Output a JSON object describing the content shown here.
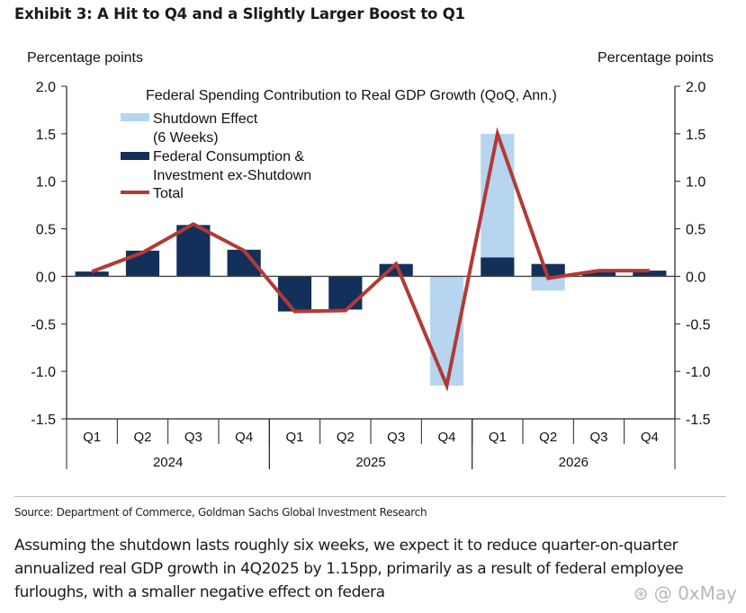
{
  "header": {
    "title": "Exhibit 3: A Hit to Q4 and a Slightly Larger Boost to Q1",
    "unit_left": "Percentage points",
    "unit_right": "Percentage points"
  },
  "chart_data": {
    "type": "bar",
    "title": "Federal Spending Contribution to Real GDP Growth (QoQ, Ann.)",
    "xlabel": "",
    "ylabel": "Percentage points",
    "ylim": [
      -1.5,
      2.0
    ],
    "yticks": [
      "2.0",
      "1.5",
      "1.0",
      "0.5",
      "0.0",
      "-0.5",
      "-1.0",
      "-1.5"
    ],
    "ytick_values": [
      2.0,
      1.5,
      1.0,
      0.5,
      0.0,
      -0.5,
      -1.0,
      -1.5
    ],
    "grid": false,
    "legend_position": "top-left",
    "categories": [
      "Q1",
      "Q2",
      "Q3",
      "Q4",
      "Q1",
      "Q2",
      "Q3",
      "Q4",
      "Q1",
      "Q2",
      "Q3",
      "Q4"
    ],
    "year_groups": [
      {
        "label": "2024",
        "quarters": 4
      },
      {
        "label": "2025",
        "quarters": 4
      },
      {
        "label": "2026",
        "quarters": 4
      }
    ],
    "series": [
      {
        "name": "Shutdown Effect\n(6 Weeks)",
        "legend_lines": [
          "Shutdown Effect",
          "(6 Weeks)"
        ],
        "kind": "bar",
        "color": "#b7d5ee",
        "values": [
          0,
          0,
          0,
          0,
          0,
          0,
          0,
          -1.15,
          1.3,
          -0.15,
          0,
          0
        ]
      },
      {
        "name": "Federal Consumption & Investment ex-Shutdown",
        "legend_lines": [
          "Federal Consumption &",
          "Investment ex-Shutdown"
        ],
        "kind": "bar",
        "color": "#12305a",
        "values": [
          0.05,
          0.27,
          0.54,
          0.28,
          -0.37,
          -0.35,
          0.13,
          0.0,
          0.2,
          0.13,
          0.05,
          0.06
        ]
      },
      {
        "name": "Total",
        "legend_lines": [
          "Total"
        ],
        "kind": "line",
        "color": "#b23a36",
        "values": [
          0.05,
          0.25,
          0.55,
          0.27,
          -0.37,
          -0.36,
          0.13,
          -1.15,
          1.5,
          -0.02,
          0.06,
          0.06
        ]
      }
    ]
  },
  "footer": {
    "source": "Source: Department of Commerce, Goldman Sachs Global Investment Research",
    "paragraph": "Assuming the shutdown lasts roughly six weeks, we expect it to reduce quarter-on-quarter annualized real GDP growth in 4Q2025 by 1.15pp, primarily as a result of federal employee furloughs, with a smaller negative effect on federa",
    "watermark": "⊛ @ 0xMay"
  }
}
